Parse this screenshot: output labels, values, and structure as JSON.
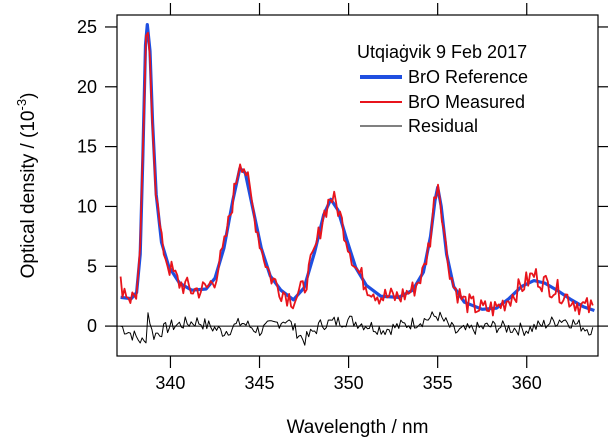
{
  "chart_data": {
    "type": "line",
    "legend_title": "Utqiaġvik 9 Feb 2017",
    "legend_position": "top-right",
    "xlabel": "Wavelength / nm",
    "ylabel_main": "Optical density / (10",
    "ylabel_exp": "-3",
    "ylabel_close": ")",
    "xlim": [
      337,
      364
    ],
    "ylim": [
      -2.5,
      26
    ],
    "xticks": [
      340,
      345,
      350,
      355,
      360
    ],
    "yticks": [
      0,
      5,
      10,
      15,
      20,
      25
    ],
    "grid": false,
    "zero_line": true,
    "series": [
      {
        "name": "BrO Reference",
        "color": "#1f4fe0",
        "kind": "reference",
        "points": [
          [
            337.2,
            2.4
          ],
          [
            337.8,
            2.3
          ],
          [
            338.1,
            2.8
          ],
          [
            338.3,
            6
          ],
          [
            338.45,
            14
          ],
          [
            338.6,
            23.5
          ],
          [
            338.7,
            25.2
          ],
          [
            338.85,
            23
          ],
          [
            339.0,
            17
          ],
          [
            339.2,
            11
          ],
          [
            339.5,
            7
          ],
          [
            339.9,
            5
          ],
          [
            340.5,
            3.6
          ],
          [
            341.2,
            3.0
          ],
          [
            342.0,
            3.1
          ],
          [
            342.5,
            4.0
          ],
          [
            343.0,
            6.5
          ],
          [
            343.5,
            10.5
          ],
          [
            343.9,
            13.2
          ],
          [
            344.2,
            12.8
          ],
          [
            344.6,
            10.0
          ],
          [
            345.1,
            6.5
          ],
          [
            345.6,
            4.2
          ],
          [
            346.2,
            3.0
          ],
          [
            346.9,
            2.2
          ],
          [
            347.5,
            3.2
          ],
          [
            348.1,
            6.2
          ],
          [
            348.6,
            9.3
          ],
          [
            349.0,
            10.6
          ],
          [
            349.4,
            9.7
          ],
          [
            349.9,
            7.2
          ],
          [
            350.4,
            4.9
          ],
          [
            351.0,
            3.4
          ],
          [
            351.8,
            2.5
          ],
          [
            352.8,
            2.4
          ],
          [
            353.6,
            3.0
          ],
          [
            354.2,
            4.5
          ],
          [
            354.6,
            7.5
          ],
          [
            354.85,
            10.5
          ],
          [
            355.0,
            11.6
          ],
          [
            355.2,
            10.0
          ],
          [
            355.5,
            6.0
          ],
          [
            355.9,
            3.3
          ],
          [
            356.5,
            2.0
          ],
          [
            357.5,
            1.4
          ],
          [
            358.3,
            1.5
          ],
          [
            359.0,
            2.3
          ],
          [
            359.7,
            3.3
          ],
          [
            360.4,
            3.8
          ],
          [
            361.0,
            3.6
          ],
          [
            361.7,
            3.0
          ],
          [
            362.5,
            2.2
          ],
          [
            363.2,
            1.6
          ],
          [
            363.8,
            1.3
          ]
        ]
      },
      {
        "name": "BrO Measured",
        "color": "#e8141c",
        "kind": "measured",
        "noise_amp": 0.9,
        "points": [
          [
            337.2,
            3.5
          ],
          [
            337.8,
            2.3
          ],
          [
            338.1,
            2.8
          ],
          [
            338.3,
            6
          ],
          [
            338.45,
            14
          ],
          [
            338.6,
            23
          ],
          [
            338.7,
            24.5
          ],
          [
            338.85,
            22.5
          ],
          [
            339.0,
            17
          ],
          [
            339.2,
            11
          ],
          [
            339.5,
            7
          ],
          [
            339.9,
            5
          ],
          [
            340.5,
            3.6
          ],
          [
            341.2,
            3.0
          ],
          [
            342.0,
            3.1
          ],
          [
            342.5,
            4.0
          ],
          [
            343.0,
            6.5
          ],
          [
            343.5,
            10.5
          ],
          [
            343.9,
            14.0
          ],
          [
            344.2,
            13.2
          ],
          [
            344.6,
            10.0
          ],
          [
            345.1,
            6.5
          ],
          [
            345.6,
            4.2
          ],
          [
            346.2,
            3.0
          ],
          [
            346.9,
            2.2
          ],
          [
            347.5,
            3.2
          ],
          [
            348.1,
            6.2
          ],
          [
            348.6,
            9.3
          ],
          [
            349.0,
            10.9
          ],
          [
            349.4,
            9.9
          ],
          [
            349.9,
            7.2
          ],
          [
            350.4,
            4.9
          ],
          [
            351.0,
            3.4
          ],
          [
            351.8,
            2.5
          ],
          [
            352.8,
            2.4
          ],
          [
            353.6,
            3.0
          ],
          [
            354.2,
            4.5
          ],
          [
            354.6,
            7.5
          ],
          [
            354.85,
            11
          ],
          [
            355.0,
            12.2
          ],
          [
            355.2,
            10.2
          ],
          [
            355.5,
            6.0
          ],
          [
            355.9,
            3.3
          ],
          [
            356.5,
            2.0
          ],
          [
            357.5,
            1.4
          ],
          [
            358.3,
            1.5
          ],
          [
            359.0,
            2.3
          ],
          [
            359.7,
            3.3
          ],
          [
            360.4,
            4.3
          ],
          [
            361.0,
            3.6
          ],
          [
            361.7,
            3.0
          ],
          [
            362.5,
            2.2
          ],
          [
            363.2,
            1.6
          ],
          [
            363.8,
            1.4
          ]
        ]
      },
      {
        "name": "Residual",
        "color": "#000000",
        "kind": "residual",
        "noise_amp": 0.55,
        "points": [
          [
            337.2,
            0.0
          ],
          [
            338.6,
            -1.5
          ],
          [
            338.75,
            1.3
          ],
          [
            339.0,
            -0.8
          ],
          [
            340.0,
            0.0
          ],
          [
            341.5,
            0.4
          ],
          [
            343.0,
            -0.5
          ],
          [
            344.0,
            0.3
          ],
          [
            345.0,
            -0.4
          ],
          [
            346.5,
            0.6
          ],
          [
            347.5,
            -1.2
          ],
          [
            348.5,
            0.2
          ],
          [
            350.0,
            0.5
          ],
          [
            352.0,
            -0.3
          ],
          [
            354.0,
            0.4
          ],
          [
            355.0,
            0.9
          ],
          [
            356.0,
            -0.5
          ],
          [
            358.0,
            0.0
          ],
          [
            360.0,
            -0.3
          ],
          [
            362.0,
            0.6
          ],
          [
            363.8,
            -0.4
          ]
        ]
      }
    ]
  }
}
